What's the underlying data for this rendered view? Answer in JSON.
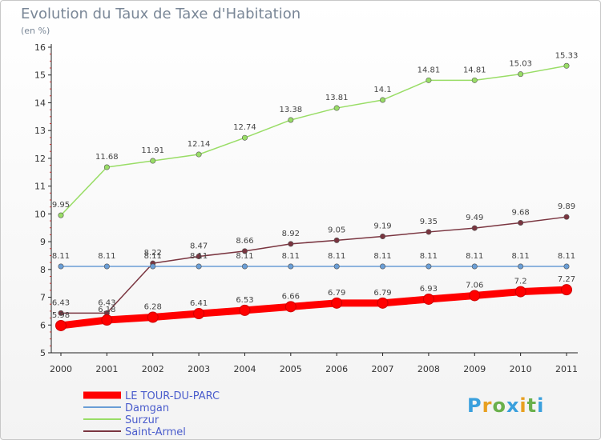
{
  "header": {
    "title": "Evolution du Taux de Taxe d'Habitation",
    "subtitle": "(en %)"
  },
  "brand": {
    "letters": [
      "P",
      "r",
      "o",
      "x",
      "i",
      "t",
      "i"
    ],
    "colors": [
      "#3aa0dd",
      "#e8a020",
      "#6ab04c",
      "#3aa0dd",
      "#e8a020",
      "#6ab04c",
      "#3aa0dd"
    ]
  },
  "chart_data": {
    "type": "line",
    "x": [
      "2000",
      "2001",
      "2002",
      "2003",
      "2004",
      "2005",
      "2006",
      "2007",
      "2008",
      "2009",
      "2010",
      "2011"
    ],
    "ylim": [
      5,
      16
    ],
    "yticks": [
      5,
      6,
      7,
      8,
      9,
      10,
      11,
      12,
      13,
      14,
      15,
      16
    ],
    "grid": false,
    "legend_position": "bottom-left",
    "series": [
      {
        "name": "LE TOUR-DU-PARC",
        "color": "#ff0000",
        "values": [
          5.98,
          6.18,
          6.28,
          6.41,
          6.53,
          6.66,
          6.79,
          6.79,
          6.93,
          7.06,
          7.2,
          7.27
        ],
        "labels": [
          "5.98",
          "6.18",
          "6.28",
          "6.41",
          "6.53",
          "6.66",
          "6.79",
          "6.79",
          "6.93",
          "7.06",
          "7.2",
          "7.27"
        ]
      },
      {
        "name": "Damgan",
        "color": "#6a9ed6",
        "values": [
          8.11,
          8.11,
          8.11,
          8.11,
          8.11,
          8.11,
          8.11,
          8.11,
          8.11,
          8.11,
          8.11,
          8.11
        ],
        "labels": [
          "8.11",
          "8.11",
          "8.11",
          "8.11",
          "8.11",
          "8.11",
          "8.11",
          "8.11",
          "8.11",
          "8.11",
          "8.11",
          "8.11"
        ]
      },
      {
        "name": "Surzur",
        "color": "#99dd66",
        "values": [
          9.95,
          11.68,
          11.91,
          12.14,
          12.74,
          13.38,
          13.81,
          14.1,
          14.81,
          14.81,
          15.03,
          15.33
        ],
        "labels": [
          "9.95",
          "11.68",
          "11.91",
          "12.14",
          "12.74",
          "13.38",
          "13.81",
          "14.1",
          "14.81",
          "14.81",
          "15.03",
          "15.33"
        ]
      },
      {
        "name": "Saint-Armel",
        "color": "#7a3540",
        "values": [
          6.43,
          6.43,
          8.22,
          8.47,
          8.66,
          8.92,
          9.05,
          9.19,
          9.35,
          9.49,
          9.68,
          9.89
        ],
        "labels": [
          "6.43",
          "6.43",
          "8.22",
          "8.47",
          "8.66",
          "8.92",
          "9.05",
          "9.19",
          "9.35",
          "9.49",
          "9.68",
          "9.89"
        ]
      }
    ]
  }
}
